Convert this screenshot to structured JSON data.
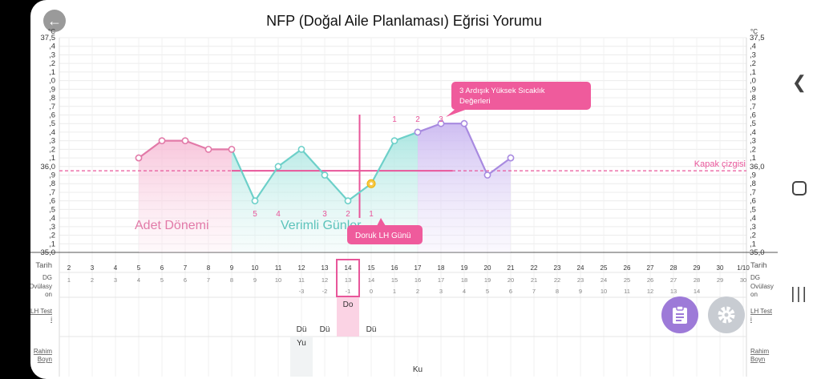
{
  "title": "NFP (Doğal Aile Planlaması) Eğrisi Yorumu",
  "units": {
    "left_top": "°C",
    "right_top": "°C"
  },
  "y_axis_labels": [
    "37,5",
    ",4",
    ",3",
    ",2",
    ",1",
    ",0",
    ",9",
    ",8",
    ",7",
    ",6",
    ",5",
    ",4",
    ",3",
    ",2",
    ",1",
    "36,0",
    ",9",
    ",8",
    ",7",
    ",6",
    ",5",
    ",4",
    ",3",
    ",2",
    ",1",
    "35,0"
  ],
  "y_axis_labels_right": [
    "37,5",
    ",4",
    ",3",
    ",2",
    ",1",
    ",0",
    ",9",
    ",8",
    ",7",
    ",6",
    ",5",
    ",4",
    ",3",
    ",2",
    ",1",
    "36,0",
    ",9",
    ",8",
    ",7",
    ",6",
    ",5",
    ",4",
    ",3",
    ",2",
    ",1",
    "35,0"
  ],
  "chart_data": {
    "type": "line",
    "x": [
      5,
      6,
      7,
      8,
      9,
      10,
      11,
      12,
      13,
      14,
      15,
      16,
      17,
      18,
      19,
      20,
      21
    ],
    "y": [
      36.1,
      36.3,
      36.3,
      36.2,
      36.2,
      35.6,
      36.0,
      36.2,
      35.9,
      35.6,
      35.8,
      36.3,
      36.4,
      36.5,
      36.5,
      35.9,
      36.1
    ],
    "ylim": [
      35.0,
      37.5
    ],
    "cover_line": 35.95,
    "cover_line_label": "Kapak çizgisi",
    "peak_day": 14.5,
    "low_counts": [
      {
        "x": 10,
        "label": "5"
      },
      {
        "x": 11,
        "label": "4"
      },
      {
        "x": 13,
        "label": "3"
      },
      {
        "x": 14,
        "label": "2"
      },
      {
        "x": 15,
        "label": "1"
      }
    ],
    "high_counts": [
      {
        "x": 16,
        "label": "1"
      },
      {
        "x": 17,
        "label": "2"
      },
      {
        "x": 18,
        "label": "3"
      }
    ],
    "regions": {
      "period": "Adet Dönemi",
      "fertile": "Verimli Günler"
    },
    "callouts": {
      "high_temps_line1": "3 Ardışık Yüksek Sıcaklık",
      "high_temps_line2": "Değerleri",
      "lh_peak": "Doruk LH Günü"
    }
  },
  "rows": {
    "date_label": "Tarih",
    "dates": [
      "2",
      "3",
      "4",
      "5",
      "6",
      "7",
      "8",
      "9",
      "10",
      "11",
      "12",
      "13",
      "14",
      "15",
      "16",
      "17",
      "18",
      "19",
      "20",
      "21",
      "22",
      "23",
      "24",
      "25",
      "26",
      "27",
      "28",
      "29",
      "30",
      "1/10"
    ],
    "cycle_label": "DG",
    "cycle_days": [
      "1",
      "2",
      "3",
      "4",
      "5",
      "6",
      "7",
      "8",
      "9",
      "10",
      "11",
      "12",
      "13",
      "14",
      "15",
      "16",
      "17",
      "18",
      "19",
      "20",
      "21",
      "22",
      "23",
      "24",
      "25",
      "26",
      "27",
      "28",
      "29",
      "30"
    ],
    "ovulation_label_1": "Ovülasy",
    "ovulation_label_2": "on",
    "ovulation": [
      "",
      "",
      "",
      "",
      "",
      "",
      "",
      "",
      "",
      "",
      "-3",
      "-2",
      "-1",
      "0",
      "1",
      "2",
      "3",
      "4",
      "5",
      "6",
      "7",
      "8",
      "9",
      "10",
      "11",
      "12",
      "13",
      "14",
      "",
      ""
    ],
    "lh_label_1": "LH Test",
    "lh_label_2": "i",
    "lh_peak_mark": "Do",
    "lh_values": [
      {
        "x": 12,
        "label": "Dü"
      },
      {
        "x": 13,
        "label": "Dü"
      },
      {
        "x": 15,
        "label": "Dü"
      }
    ],
    "cervix_label_1": "Rahim",
    "cervix_label_2": "Boyn",
    "cervix_values": [
      {
        "x": 12,
        "label": "Yu"
      },
      {
        "x": 17,
        "label": "Ku"
      }
    ]
  },
  "colors": {
    "period": "#e27aa8",
    "fertile": "#6dd0c9",
    "post": "#a88ae0",
    "accent": "#e8569a",
    "fab_purple": "#9d7ad8"
  },
  "icons": {
    "back": "arrow-left-icon",
    "notes": "clipboard-icon",
    "settings": "gear-icon",
    "nav_back": "chevron-left-icon",
    "nav_home": "circle-home-icon",
    "nav_recent": "recent-apps-icon"
  }
}
